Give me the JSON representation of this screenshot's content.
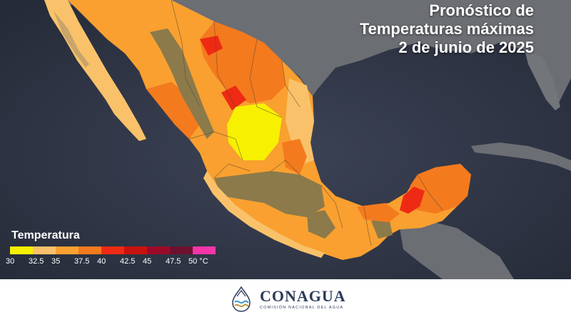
{
  "title": {
    "line1": "Pronóstico de",
    "line2": "Temperaturas máximas",
    "line3": "2 de junio de 2025"
  },
  "legend": {
    "title": "Temperatura",
    "unit": "°C",
    "bins": [
      {
        "color": "#f7f000"
      },
      {
        "color": "#f9c26a"
      },
      {
        "color": "#f9a030"
      },
      {
        "color": "#f47a1e"
      },
      {
        "color": "#ee2a14"
      },
      {
        "color": "#c8120e"
      },
      {
        "color": "#9c0a2a"
      },
      {
        "color": "#6e1030"
      },
      {
        "color": "#f436a8"
      }
    ],
    "ticks": [
      "30",
      "32.5",
      "35",
      "37.5",
      "40",
      "42.5",
      "45",
      "47.5",
      "50 °C"
    ]
  },
  "footer": {
    "logo_name": "CONAGUA",
    "logo_subtitle": "COMISIÓN NACIONAL DEL AGUA"
  },
  "colors": {
    "ocean": "#33394a",
    "land_outside": "#6b6e73",
    "hot_orange": "#f47a1e",
    "light_orange": "#f9c26a",
    "yellow": "#f7f000",
    "highland": "#8c7a4a"
  }
}
